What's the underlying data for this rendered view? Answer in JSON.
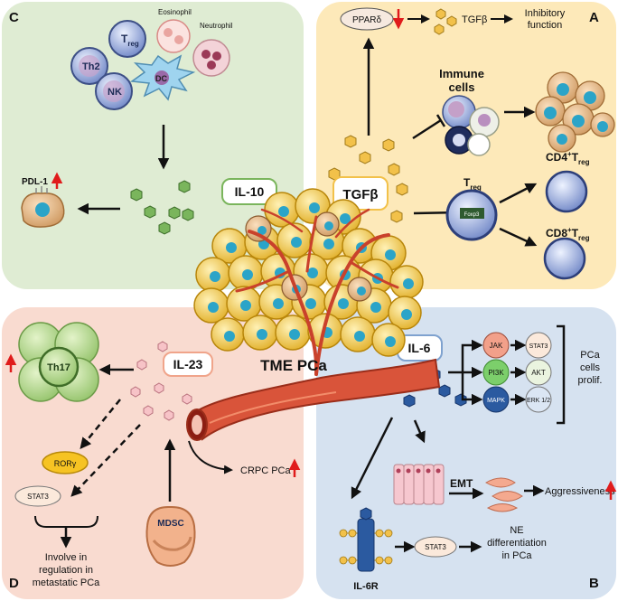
{
  "panels": {
    "C": {
      "letter": "C",
      "cells": {
        "treg": "T",
        "treg_sub": "reg",
        "eosinophil": "Eosinophil",
        "neutrophil": "Neutrophil",
        "th2": "Th2",
        "dc": "DC",
        "nk": "NK"
      },
      "pdl1": "PDL-1",
      "il10": "IL-10"
    },
    "A": {
      "letter": "A",
      "ppar": "PPARδ",
      "tgfb_small": "TGFβ",
      "inhibitory": [
        "Inhibitory",
        "function"
      ],
      "immune": [
        "Immune",
        "cells"
      ],
      "tgfb": "TGFβ",
      "treg": "T",
      "treg_sub": "reg",
      "foxp3": "Foxp3",
      "cd4": "CD4",
      "cd4_sup": "+",
      "cd4_t": "T",
      "cd4_sub": "reg",
      "cd8": "CD8",
      "cd8_sup": "+",
      "cd8_t": "T",
      "cd8_sub": "reg"
    },
    "D": {
      "letter": "D",
      "th17": "Th17",
      "il23": "IL-23",
      "rory": "RORγ",
      "stat3": "STAT3",
      "crpc": "CRPC PCa",
      "mdsc": "MDSC",
      "involve": [
        "Involve in",
        "regulation in",
        "metastatic PCa"
      ]
    },
    "B": {
      "letter": "B",
      "il6": "IL-6",
      "jak": "JAK",
      "pi3k": "PI3K",
      "mapk": "MAPK",
      "stat3": "STAT3",
      "akt": "AKT",
      "erk": "ERK 1/2",
      "prolif": [
        "PCa",
        "cells",
        "prolif."
      ],
      "emt": "EMT",
      "aggressiveness": "Aggressiveness",
      "il6r": "IL-6R",
      "stat3_ne": "STAT3",
      "ne": [
        "NE",
        "differentiation",
        "in PCa"
      ]
    }
  },
  "center": {
    "label": "TME PCa"
  },
  "colors": {
    "panel_c": "#dfecd3",
    "panel_a": "#fde9b9",
    "panel_d": "#f9dbd0",
    "panel_b": "#d6e2f0",
    "up_arrow": "#e01b1b",
    "tumor": "#f0c542",
    "nucleus": "#2ba4c8",
    "vessel": "#d9543a",
    "il10_box": "#7ab55c",
    "tgfb_box": "#f2c14a",
    "il23_box": "#f0a48a",
    "il6_box": "#7fa2cf"
  }
}
